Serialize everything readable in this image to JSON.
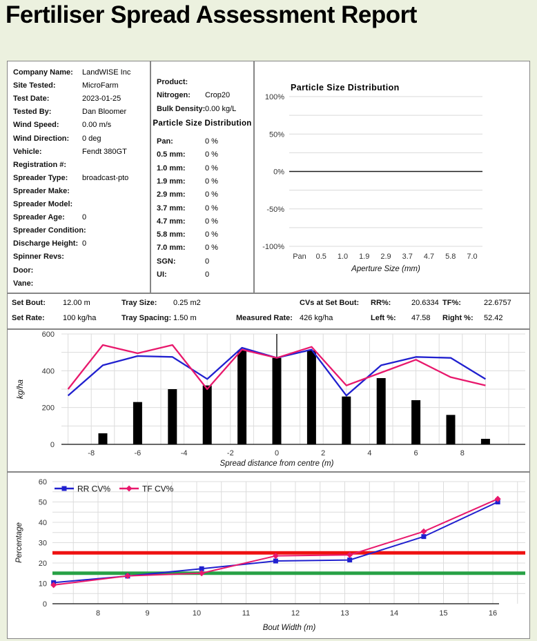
{
  "page": {
    "title": "Fertiliser Spread Assessment Report",
    "bg_color": "#ecf1df"
  },
  "site_info": {
    "rows": [
      {
        "label": "Company Name:",
        "value": "LandWISE Inc"
      },
      {
        "label": "Site Tested:",
        "value": "MicroFarm"
      },
      {
        "label": "Test Date:",
        "value": "2023-01-25"
      },
      {
        "label": "Tested By:",
        "value": "Dan Bloomer"
      },
      {
        "label": "Wind Speed:",
        "value": "0.00 m/s"
      },
      {
        "label": "Wind Direction:",
        "value": "0 deg"
      },
      {
        "label": "Vehicle:",
        "value": "Fendt 380GT"
      },
      {
        "label": "Registration #:",
        "value": ""
      },
      {
        "label": "Spreader Type:",
        "value": "broadcast-pto"
      },
      {
        "label": "Spreader Make:",
        "value": ""
      },
      {
        "label": "Spreader Model:",
        "value": ""
      },
      {
        "label": "Spreader Age:",
        "value": "0"
      },
      {
        "label": "Spreader Condition:",
        "value": ""
      },
      {
        "label": "Discharge Height:",
        "value": "0"
      },
      {
        "label": "Spinner Revs:",
        "value": ""
      },
      {
        "label": "Door:",
        "value": ""
      },
      {
        "label": "Vane:",
        "value": ""
      }
    ]
  },
  "product_info": {
    "rows_top": [
      {
        "label": "Product:",
        "value": ""
      },
      {
        "label": "Nitrogen:",
        "value": "Crop20"
      },
      {
        "label": "Bulk Density:",
        "value": "0.00 kg/L"
      }
    ],
    "psd_heading": "Particle Size Distribution",
    "rows_psd": [
      {
        "label": "Pan:",
        "value": "0 %"
      },
      {
        "label": "0.5 mm:",
        "value": "0 %"
      },
      {
        "label": "1.0 mm:",
        "value": "0 %"
      },
      {
        "label": "1.9 mm:",
        "value": "0 %"
      },
      {
        "label": "2.9 mm:",
        "value": "0 %"
      },
      {
        "label": "3.7 mm:",
        "value": "0 %"
      },
      {
        "label": "4.7 mm:",
        "value": "0 %"
      },
      {
        "label": "5.8 mm:",
        "value": "0 %"
      },
      {
        "label": "7.0 mm:",
        "value": "0 %"
      },
      {
        "label": "SGN:",
        "value": "0"
      },
      {
        "label": "UI:",
        "value": "0"
      }
    ]
  },
  "setbout": {
    "row1": [
      {
        "label": "Set Bout:",
        "value": "12.00 m"
      },
      {
        "label": "Tray Size:",
        "value": "0.25 m2"
      },
      {
        "label": "CVs at Set Bout:",
        "value": ""
      },
      {
        "label": "RR%:",
        "value": "20.6334"
      },
      {
        "label": "TF%:",
        "value": "22.6757"
      }
    ],
    "row2": [
      {
        "label": "Set Rate:",
        "value": "100 kg/ha"
      },
      {
        "label": "Tray Spacing:",
        "value": "1.50 m"
      },
      {
        "label": "Measured Rate:",
        "value": "426 kg/ha"
      },
      {
        "label": "Left %:",
        "value": "47.58"
      },
      {
        "label": "Right %:",
        "value": "52.42"
      }
    ]
  },
  "chart_data": [
    {
      "id": "particle-size-chart",
      "type": "line",
      "title": "Particle Size Distribution",
      "categories": [
        "Pan",
        "0.5",
        "1.0",
        "1.9",
        "2.9",
        "3.7",
        "4.7",
        "5.8",
        "7.0"
      ],
      "series": [],
      "xlabel": "Aperture Size (mm)",
      "ylabel": "",
      "ylim": [
        -100,
        100
      ],
      "yticks": [
        "100%",
        "50%",
        "0%",
        "-50%",
        "-100%"
      ],
      "grid": "horizontal minor every 25%, zero line black",
      "legend_position": "none"
    },
    {
      "id": "spread-pattern-chart",
      "type": "bar+line",
      "title": "",
      "xlabel": "Spread distance from centre (m)",
      "ylabel": "kg/ha",
      "ylim": [
        0,
        600
      ],
      "yticks": [
        0,
        200,
        400,
        600
      ],
      "xticks": [
        -8,
        -6,
        -4,
        -2,
        0,
        2,
        4,
        6,
        8
      ],
      "x": [
        -9,
        -7.5,
        -6,
        -4.5,
        -3,
        -1.5,
        0,
        1.5,
        3,
        4.5,
        6,
        7.5,
        9
      ],
      "bars": {
        "name": "tray-catch",
        "color": "#000000",
        "x": [
          -7.5,
          -6,
          -4.5,
          -3,
          -1.5,
          0,
          1.5,
          3,
          4.5,
          6,
          7.5,
          9
        ],
        "values": [
          60,
          230,
          300,
          320,
          510,
          470,
          510,
          260,
          360,
          240,
          160,
          30
        ]
      },
      "series": [
        {
          "name": "line-1",
          "color": "#2020cf",
          "values": [
            265,
            430,
            480,
            475,
            355,
            525,
            470,
            515,
            265,
            430,
            475,
            470,
            355
          ]
        },
        {
          "name": "line-2",
          "color": "#e8186c",
          "values": [
            300,
            540,
            495,
            540,
            300,
            515,
            470,
            530,
            320,
            390,
            460,
            365,
            320
          ]
        }
      ],
      "centre_marker_x": 0,
      "legend_position": "none"
    },
    {
      "id": "cv-bout-width-chart",
      "type": "line",
      "title": "",
      "xlabel": "Bout Width (m)",
      "ylabel": "Percentage",
      "ylim": [
        0,
        60
      ],
      "yticks": [
        0,
        10,
        20,
        30,
        40,
        50,
        60
      ],
      "xticks": [
        8,
        9,
        10,
        11,
        12,
        13,
        14,
        15,
        16
      ],
      "x": [
        7.1,
        8.6,
        10.1,
        11.6,
        13.1,
        14.6,
        16.1
      ],
      "series": [
        {
          "name": "RR CV%",
          "color": "#2020cf",
          "marker": "square",
          "values": [
            10.4,
            13.6,
            17.2,
            21,
            21.5,
            33,
            50
          ]
        },
        {
          "name": "TF CV%",
          "color": "#e8186c",
          "marker": "diamond",
          "values": [
            9.2,
            13.7,
            15,
            23.5,
            24,
            35.5,
            51.5
          ]
        }
      ],
      "thresholds": [
        {
          "label": "upper-limit",
          "value": 25,
          "color": "#ee1111"
        },
        {
          "label": "lower-limit",
          "value": 15,
          "color": "#28a146"
        }
      ],
      "legend_position": "top-left"
    }
  ]
}
